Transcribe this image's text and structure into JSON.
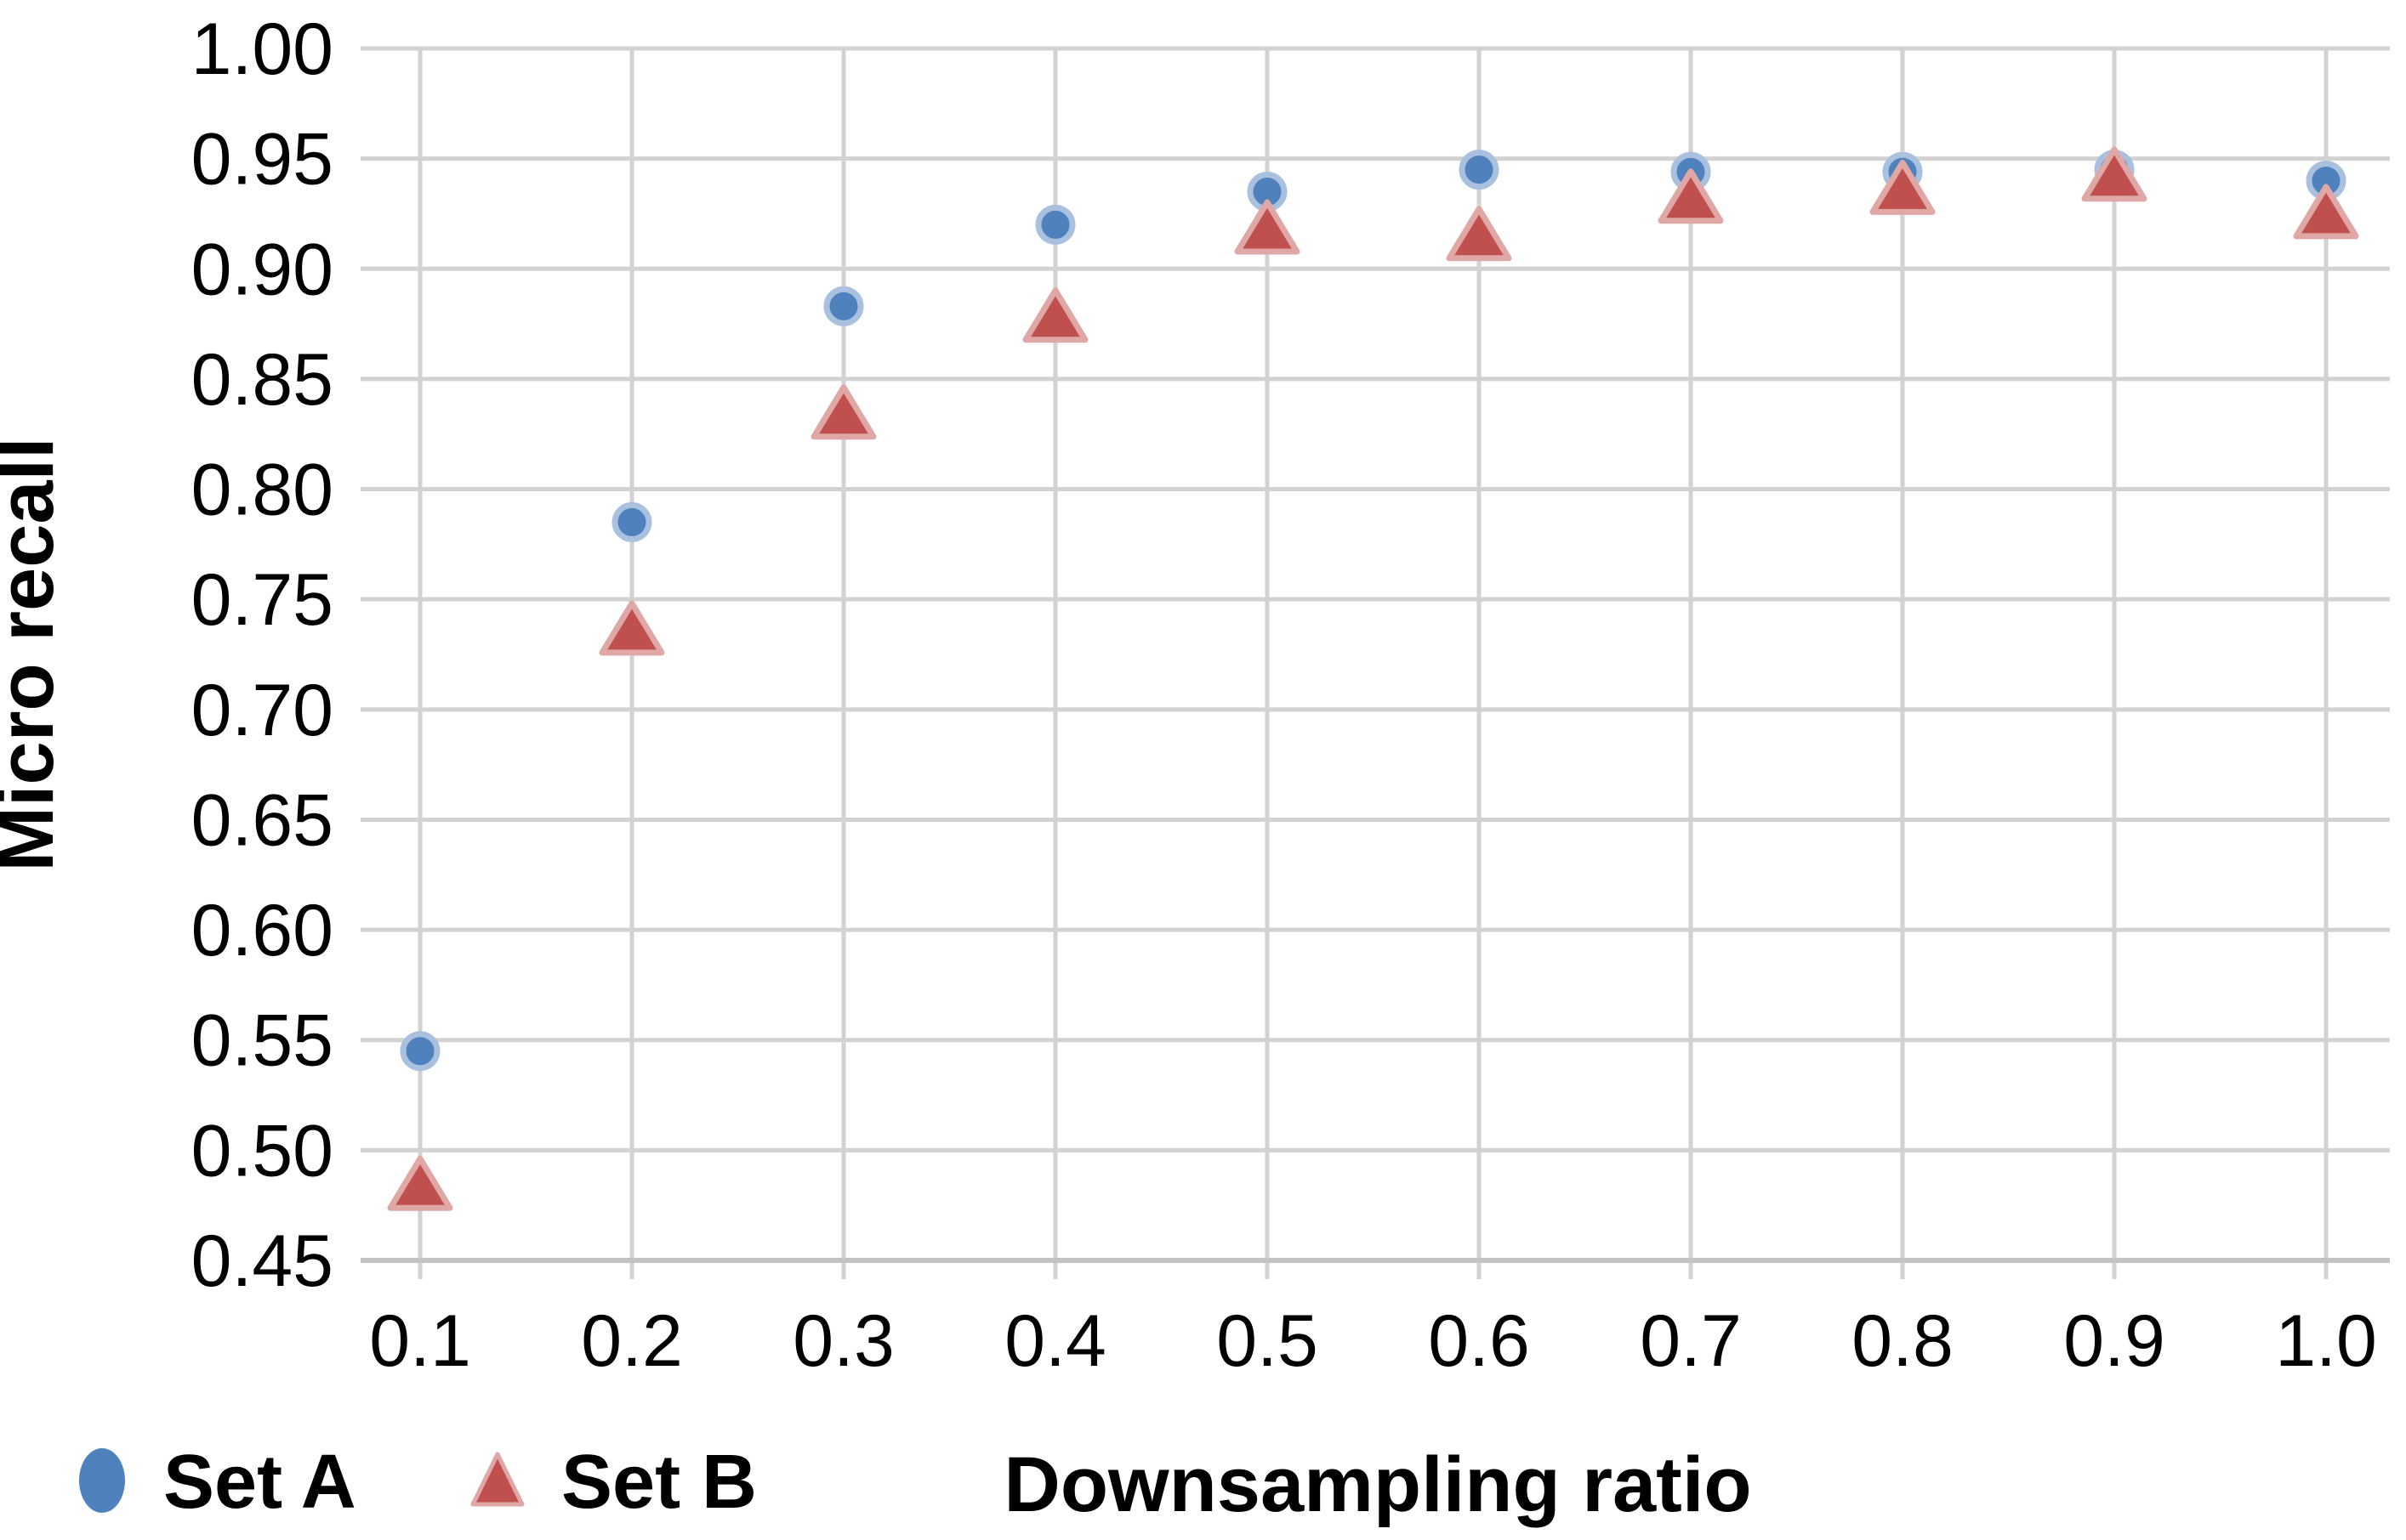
{
  "chart_data": {
    "type": "scatter",
    "title": "",
    "xlabel": "Downsampling ratio",
    "ylabel": "Micro recall",
    "x": [
      0.1,
      0.2,
      0.3,
      0.4,
      0.5,
      0.6,
      0.7,
      0.8,
      0.9,
      1.0
    ],
    "series": [
      {
        "name": "Set A",
        "marker": "circle",
        "color": "#4f81bd",
        "halo": "#a9c1de",
        "values": [
          0.545,
          0.785,
          0.883,
          0.92,
          0.935,
          0.945,
          0.944,
          0.944,
          0.945,
          0.94
        ]
      },
      {
        "name": "Set B",
        "marker": "triangle",
        "color": "#c0504d",
        "halo": "#dfa7a5",
        "values": [
          0.485,
          0.737,
          0.835,
          0.879,
          0.919,
          0.916,
          0.933,
          0.937,
          0.943,
          0.926
        ]
      }
    ],
    "ylim": [
      0.45,
      1.0
    ],
    "yticks": [
      1.0,
      0.95,
      0.9,
      0.85,
      0.8,
      0.75,
      0.7,
      0.65,
      0.6,
      0.55,
      0.5,
      0.45
    ],
    "ytick_labels": [
      "1.00",
      "0.95",
      "0.90",
      "0.85",
      "0.80",
      "0.75",
      "0.70",
      "0.65",
      "0.60",
      "0.55",
      "0.50",
      "0.45"
    ],
    "xtick_labels": [
      "0.1",
      "0.2",
      "0.3",
      "0.4",
      "0.5",
      "0.6",
      "0.7",
      "0.8",
      "0.9",
      "1.0"
    ],
    "grid": true,
    "legend_position": "bottom-left",
    "legend": [
      "Set A",
      "Set B"
    ]
  },
  "style_colors": {
    "gridline": "#d2d2d2",
    "axis_line": "#c3c3c3",
    "text": "#000000"
  }
}
